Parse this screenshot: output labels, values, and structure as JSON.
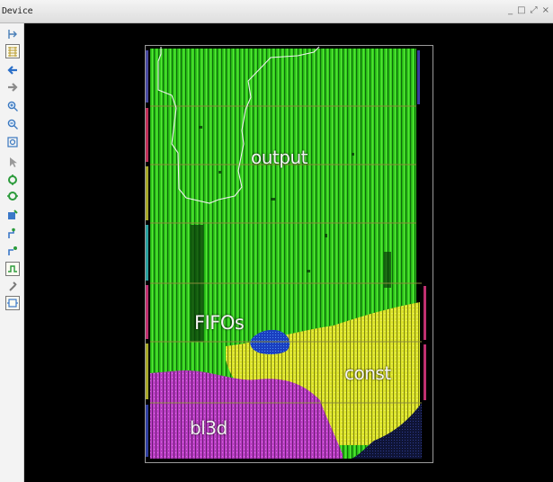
{
  "window": {
    "title": "Device",
    "buttons": {
      "minimize": "_",
      "maximize": "□",
      "restore": "⤢",
      "close": "×"
    }
  },
  "toolbar": {
    "tools": [
      "toggle-panel-icon",
      "route-view-icon",
      "back-arrow-icon",
      "forward-arrow-icon",
      "zoom-in-icon",
      "zoom-out-icon",
      "zoom-fit-icon",
      "select-cursor-icon",
      "highlight-icon",
      "unhighlight-icon",
      "mark-icon",
      "route-icon",
      "unroute-icon",
      "timing-icon",
      "pin-icon",
      "schematic-icon"
    ]
  },
  "device_view": {
    "labels": {
      "output": "output",
      "fifos": "FIFOs",
      "const": "const",
      "bl3d": "bl3d"
    },
    "colors": {
      "background": "#000000",
      "output_region": "#33d61a",
      "const_region": "#e2ea2a",
      "bl3d_region": "#c43fcd",
      "fifos_region": "#1f4fd0",
      "clock_region_border": "#8a8a3a",
      "outline": "#ffffff"
    }
  }
}
